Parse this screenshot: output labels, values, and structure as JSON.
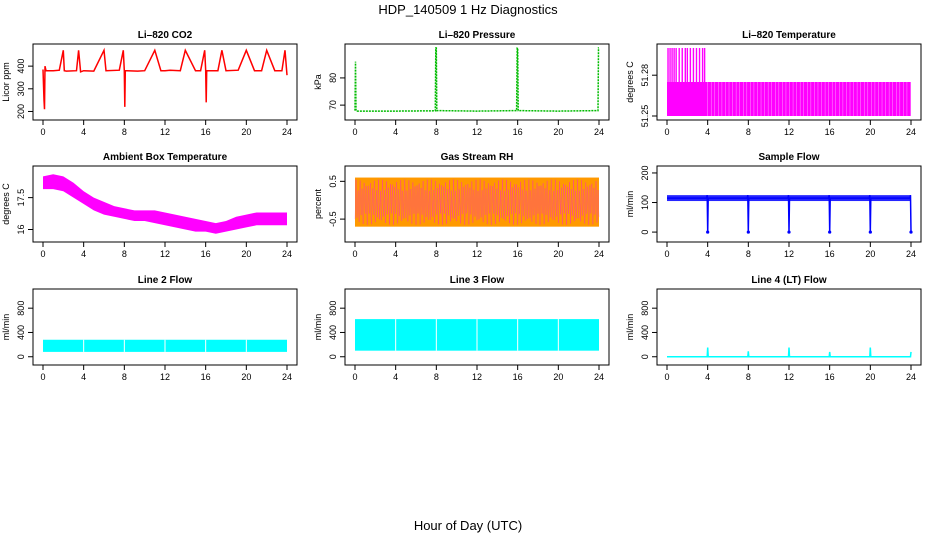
{
  "figure": {
    "title": "HDP_140509  1 Hz Diagnostics",
    "xlabel": "Hour of Day (UTC)"
  },
  "chart_data": [
    {
      "id": "co2",
      "type": "line",
      "title": "Li–820 CO2",
      "ylabel": "Licor ppm",
      "color": "#ff0000",
      "xlim": [
        0,
        24
      ],
      "ylim": [
        180,
        480
      ],
      "xticks": [
        0,
        4,
        8,
        12,
        16,
        20,
        24
      ],
      "yticks": [
        200,
        300,
        400
      ],
      "x": [
        0.0,
        0.1,
        0.15,
        0.2,
        0.3,
        1.0,
        1.6,
        2.0,
        2.1,
        2.3,
        3.3,
        3.5,
        3.7,
        4.0,
        5.0,
        6.0,
        6.2,
        7.5,
        7.9,
        8.0,
        8.05,
        8.1,
        9.3,
        10.0,
        11.0,
        11.6,
        12.0,
        12.5,
        13.5,
        14.0,
        15.0,
        15.5,
        15.9,
        16.0,
        16.05,
        16.1,
        17.2,
        17.6,
        18.0,
        19.2,
        20.0,
        20.8,
        21.5,
        22.0,
        22.8,
        23.5,
        23.8,
        24.0
      ],
      "y": [
        385,
        250,
        210,
        400,
        380,
        380,
        382,
        470,
        380,
        378,
        380,
        470,
        375,
        380,
        378,
        470,
        380,
        382,
        470,
        380,
        220,
        380,
        378,
        380,
        470,
        380,
        380,
        382,
        380,
        470,
        380,
        380,
        470,
        380,
        240,
        380,
        380,
        470,
        380,
        382,
        470,
        380,
        380,
        470,
        380,
        380,
        470,
        360
      ]
    },
    {
      "id": "pressure",
      "type": "line",
      "title": "Li–820 Pressure",
      "ylabel": "kPa",
      "color": "#00bb00",
      "xlim": [
        0,
        24
      ],
      "ylim": [
        66,
        91
      ],
      "xticks": [
        0,
        4,
        8,
        12,
        16,
        20,
        24
      ],
      "yticks": [
        70,
        80
      ],
      "x": [
        0.0,
        0.05,
        0.1,
        0.2,
        4.0,
        7.9,
        7.95,
        8.0,
        8.05,
        12.0,
        15.9,
        15.95,
        16.0,
        16.05,
        20.0,
        23.9,
        23.95,
        24.0
      ],
      "y": [
        68,
        86,
        68,
        67.8,
        67.8,
        67.9,
        91,
        91,
        68,
        67.8,
        68,
        91,
        91,
        68,
        67.8,
        68,
        91,
        91
      ]
    },
    {
      "id": "temperature",
      "type": "line",
      "title": "Li–820 Temperature",
      "ylabel": "degrees C",
      "color": "#ff00ff",
      "xlim": [
        0,
        24
      ],
      "ylim": [
        51.25,
        51.3
      ],
      "xticks": [
        0,
        4,
        8,
        12,
        16,
        20,
        24
      ],
      "yticks": [
        51.25,
        51.28
      ],
      "levels": [
        51.25,
        51.275,
        51.3
      ],
      "band_value": 51.275,
      "base_value": 51.25,
      "top_value": 51.3,
      "top_spikes_x": [
        0.1,
        0.3,
        0.5,
        0.7,
        0.9,
        1.2,
        1.5,
        1.8,
        2.0,
        2.3,
        2.6,
        2.9,
        3.2,
        3.5,
        3.7
      ]
    },
    {
      "id": "ambient",
      "type": "area",
      "title": "Ambient Box Temperature",
      "ylabel": "degrees C",
      "color": "#ff00ff",
      "xlim": [
        0,
        24
      ],
      "ylim": [
        15.6,
        18.8
      ],
      "xticks": [
        0,
        4,
        8,
        12,
        16,
        20,
        24
      ],
      "yticks": [
        16.0,
        17.5
      ],
      "x": [
        0,
        1,
        2,
        3,
        4,
        5,
        6,
        7,
        8,
        9,
        10,
        11,
        12,
        13,
        14,
        15,
        16,
        17,
        18,
        19,
        20,
        21,
        22,
        23,
        24
      ],
      "upper": [
        18.5,
        18.6,
        18.5,
        18.2,
        17.8,
        17.5,
        17.3,
        17.1,
        17.0,
        16.9,
        16.9,
        16.9,
        16.8,
        16.7,
        16.6,
        16.5,
        16.4,
        16.3,
        16.4,
        16.6,
        16.7,
        16.8,
        16.8,
        16.8,
        16.8
      ],
      "lower": [
        17.9,
        17.9,
        17.8,
        17.5,
        17.2,
        16.9,
        16.7,
        16.6,
        16.5,
        16.4,
        16.4,
        16.3,
        16.2,
        16.1,
        16.0,
        15.9,
        15.9,
        15.8,
        15.9,
        16.0,
        16.1,
        16.2,
        16.2,
        16.2,
        16.2
      ]
    },
    {
      "id": "rh",
      "type": "area",
      "title": "Gas Stream RH",
      "ylabel": "percent",
      "color": "#ff9900",
      "overlay_color": "#ff00ff",
      "xlim": [
        0,
        24
      ],
      "ylim": [
        -1.0,
        0.8
      ],
      "xticks": [
        0,
        4,
        8,
        12,
        16,
        20,
        24
      ],
      "yticks": [
        -0.5,
        0.5
      ],
      "upper_value": 0.6,
      "lower_value": -0.7
    },
    {
      "id": "sample",
      "type": "line",
      "title": "Sample Flow",
      "ylabel": "ml/min",
      "color": "#0000ff",
      "xlim": [
        0,
        24
      ],
      "ylim": [
        -20,
        210
      ],
      "xticks": [
        0,
        4,
        8,
        12,
        16,
        20,
        24
      ],
      "yticks": [
        0,
        100,
        200
      ],
      "x": [
        0,
        3.9,
        3.95,
        4.0,
        4.05,
        7.9,
        7.95,
        8.0,
        8.05,
        11.9,
        11.95,
        12.0,
        12.05,
        15.9,
        15.95,
        16.0,
        16.05,
        19.9,
        19.95,
        20.0,
        20.05,
        23.9,
        23.95,
        24.0
      ],
      "y": [
        115,
        115,
        125,
        0,
        115,
        115,
        125,
        0,
        115,
        115,
        125,
        0,
        115,
        115,
        125,
        0,
        115,
        115,
        125,
        0,
        115,
        115,
        125,
        0
      ],
      "band": [
        105,
        125
      ]
    },
    {
      "id": "line2",
      "type": "area",
      "title": "Line 2 Flow",
      "ylabel": "ml/min",
      "color": "#00ffff",
      "xlim": [
        0,
        24
      ],
      "ylim": [
        -70,
        1050
      ],
      "xticks": [
        0,
        4,
        8,
        12,
        16,
        20,
        24
      ],
      "yticks": [
        0,
        400,
        800
      ],
      "band": [
        80,
        280
      ],
      "gaps_x": [
        4,
        8,
        12,
        16,
        20
      ]
    },
    {
      "id": "line3",
      "type": "area",
      "title": "Line 3 Flow",
      "ylabel": "ml/min",
      "color": "#00ffff",
      "xlim": [
        0,
        24
      ],
      "ylim": [
        -70,
        1050
      ],
      "xticks": [
        0,
        4,
        8,
        12,
        16,
        20,
        24
      ],
      "yticks": [
        0,
        400,
        800
      ],
      "band": [
        100,
        620
      ],
      "gaps_x": [
        4,
        8,
        12,
        16,
        20
      ]
    },
    {
      "id": "line4",
      "type": "line",
      "title": "Line 4 (LT) Flow",
      "ylabel": "ml/min",
      "color": "#00ffff",
      "xlim": [
        0,
        24
      ],
      "ylim": [
        -70,
        1050
      ],
      "xticks": [
        0,
        4,
        8,
        12,
        16,
        20,
        24
      ],
      "yticks": [
        0,
        400,
        800
      ],
      "x": [
        0,
        3.95,
        4.0,
        4.05,
        7.95,
        8.0,
        8.05,
        11.95,
        12.0,
        12.05,
        15.95,
        16.0,
        16.05,
        19.95,
        20.0,
        20.05,
        23.95,
        24.0
      ],
      "y": [
        0,
        0,
        150,
        0,
        0,
        90,
        0,
        0,
        150,
        0,
        0,
        80,
        0,
        0,
        150,
        0,
        0,
        80
      ]
    }
  ]
}
